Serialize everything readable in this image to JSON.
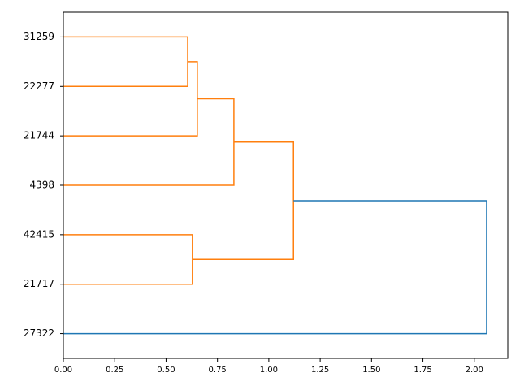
{
  "chart_data": {
    "type": "dendrogram",
    "orientation": "left",
    "categories": [
      "31259",
      "22277",
      "21744",
      "4398",
      "42415",
      "21717",
      "27322"
    ],
    "tree": {
      "height": 2.06,
      "color": "#1f77b4",
      "children": [
        {
          "height": 1.12,
          "color": "#ff7f0e",
          "children": [
            {
              "height": 0.83,
              "color": "#ff7f0e",
              "children": [
                {
                  "height": 0.652,
                  "color": "#ff7f0e",
                  "children": [
                    {
                      "height": 0.605,
                      "color": "#ff7f0e",
                      "children": [
                        {
                          "leaf": 0
                        },
                        {
                          "leaf": 1
                        }
                      ]
                    },
                    {
                      "leaf": 2
                    }
                  ]
                },
                {
                  "leaf": 3
                }
              ]
            },
            {
              "height": 0.628,
              "color": "#ff7f0e",
              "children": [
                {
                  "leaf": 4
                },
                {
                  "leaf": 5
                }
              ]
            }
          ]
        },
        {
          "leaf": 6
        }
      ]
    },
    "xlim": [
      0,
      2.163
    ],
    "xticks": [
      {
        "value": 0,
        "label": "0.00"
      },
      {
        "value": 0.25,
        "label": "0.25"
      },
      {
        "value": 0.5,
        "label": "0.50"
      },
      {
        "value": 0.75,
        "label": "0.75"
      },
      {
        "value": 1,
        "label": "1.00"
      },
      {
        "value": 1.25,
        "label": "1.25"
      },
      {
        "value": 1.5,
        "label": "1.50"
      },
      {
        "value": 1.75,
        "label": "1.75"
      },
      {
        "value": 2,
        "label": "2.00"
      }
    ]
  }
}
